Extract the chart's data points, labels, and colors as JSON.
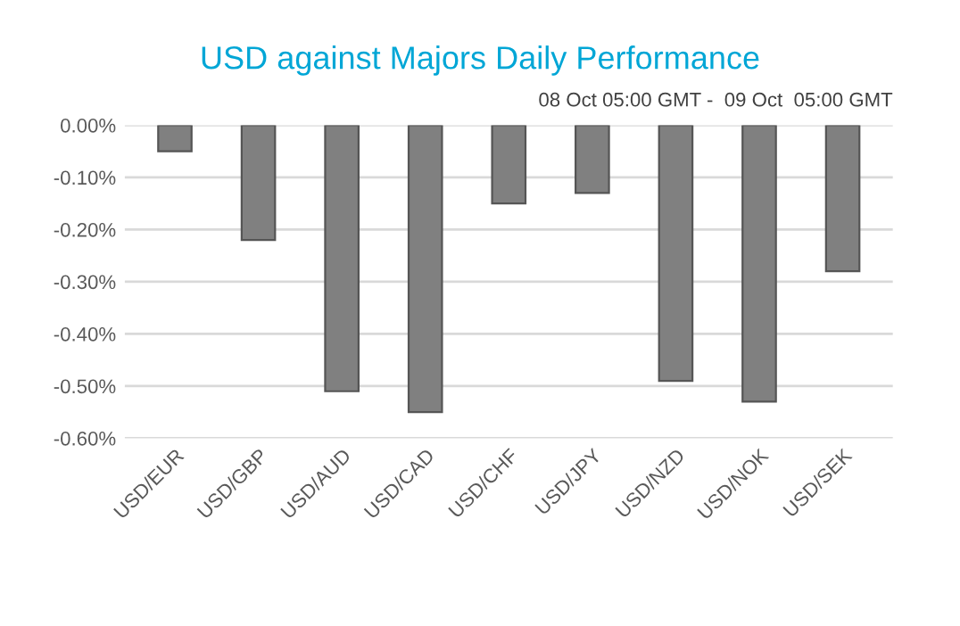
{
  "chart_data": {
    "type": "bar",
    "title": "USD against Majors Daily Performance",
    "annotations": [
      "08 Oct 05:00 GMT -  09 Oct  05:00 GMT"
    ],
    "categories": [
      "USD/EUR",
      "USD/GBP",
      "USD/AUD",
      "USD/CAD",
      "USD/CHF",
      "USD/JPY",
      "USD/NZD",
      "USD/NOK",
      "USD/SEK"
    ],
    "values": [
      -0.05,
      -0.22,
      -0.51,
      -0.55,
      -0.15,
      -0.13,
      -0.49,
      -0.53,
      -0.28
    ],
    "color": "#808080",
    "ylim": [
      -0.6,
      0
    ],
    "yticks": [
      {
        "value": 0,
        "label": "0.00%"
      },
      {
        "value": -0.1,
        "label": "-0.10%"
      },
      {
        "value": -0.2,
        "label": "-0.20%"
      },
      {
        "value": -0.3,
        "label": "-0.30%"
      },
      {
        "value": -0.4,
        "label": "-0.40%"
      },
      {
        "value": -0.5,
        "label": "-0.50%"
      },
      {
        "value": -0.6,
        "label": "-0.60%"
      }
    ],
    "grid": "y"
  }
}
